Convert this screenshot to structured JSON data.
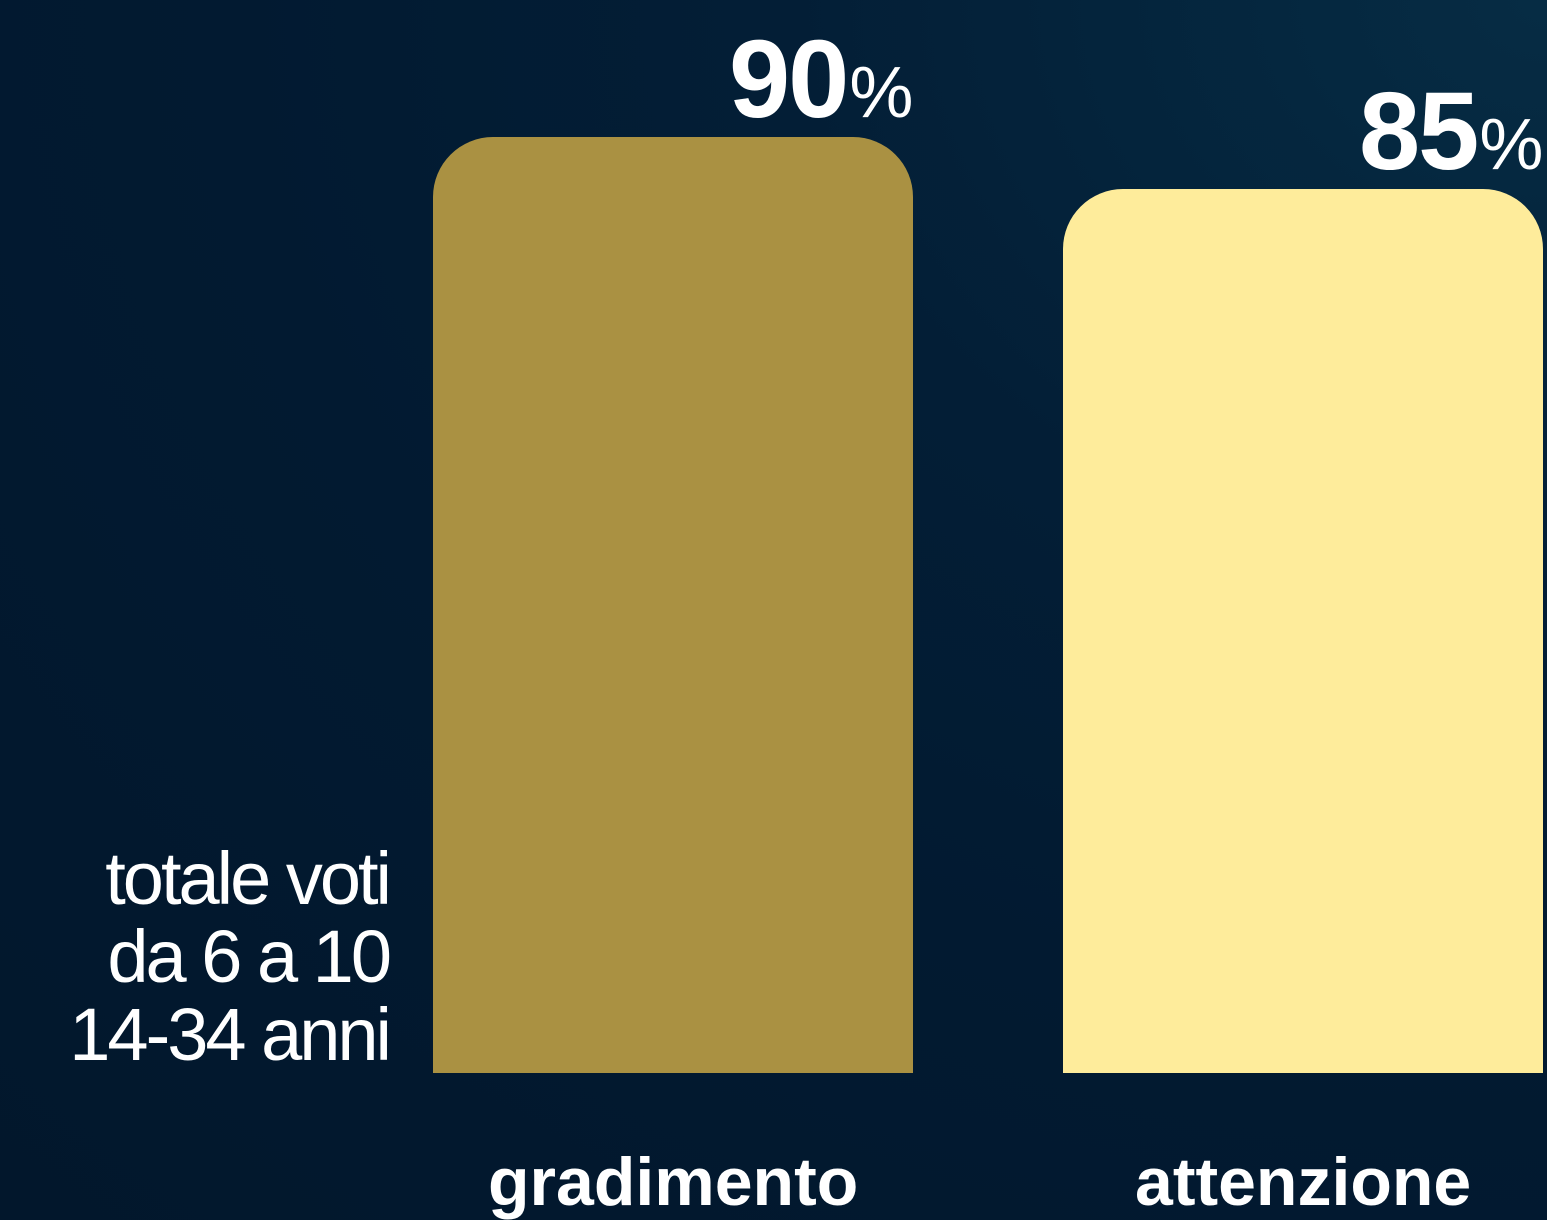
{
  "chart_data": {
    "type": "bar",
    "categories": [
      "gradimento",
      "attenzione"
    ],
    "values": [
      90,
      85
    ],
    "unit": "%",
    "ylim": [
      0,
      100
    ],
    "grid": false,
    "legend": "none",
    "colors": [
      "#aa9142",
      "#feec9b"
    ],
    "note_lines": [
      "totale voti",
      "da 6 a 10",
      "14-34 anni"
    ]
  }
}
